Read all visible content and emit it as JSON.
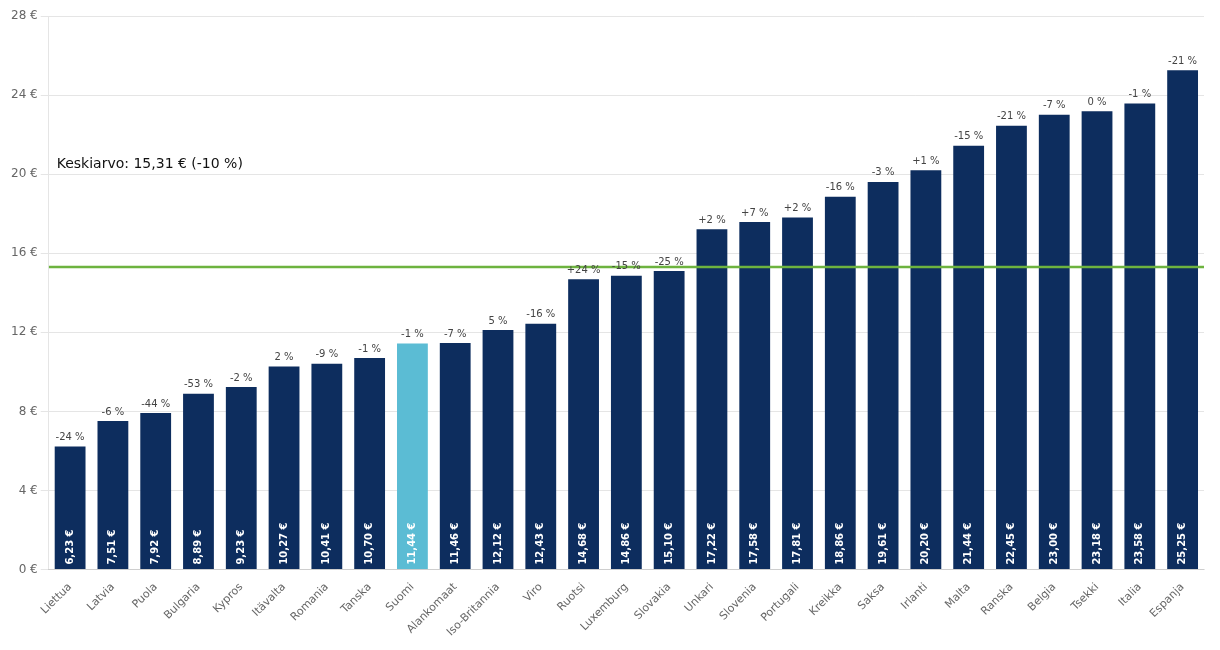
{
  "chart_data": {
    "type": "bar",
    "categories": [
      "Liettua",
      "Latvia",
      "Puola",
      "Bulgaria",
      "Kypros",
      "Itävalta",
      "Romania",
      "Tanska",
      "Suomi",
      "Alankomaat",
      "Iso-Britannia",
      "Viro",
      "Ruotsi",
      "Luxemburg",
      "Slovakia",
      "Unkari",
      "Slovenia",
      "Portugali",
      "Kreikka",
      "Saksa",
      "Irlanti",
      "Malta",
      "Ranska",
      "Belgia",
      "Tsekki",
      "Italia",
      "Espanja"
    ],
    "values": [
      6.23,
      7.51,
      7.92,
      8.89,
      9.23,
      10.27,
      10.41,
      10.7,
      11.44,
      11.46,
      12.12,
      12.43,
      14.68,
      14.86,
      15.1,
      17.22,
      17.58,
      17.81,
      18.86,
      19.61,
      20.2,
      21.44,
      22.45,
      23.0,
      23.18,
      23.58,
      25.25
    ],
    "data_labels": true,
    "value_labels": [
      "6,23 €",
      "7,51 €",
      "7,92 €",
      "8,89 €",
      "9,23 €",
      "10,27 €",
      "10,41 €",
      "10,70 €",
      "11,44 €",
      "11,46 €",
      "12,12 €",
      "12,43 €",
      "14,68 €",
      "14,86 €",
      "15,10 €",
      "17,22 €",
      "17,58 €",
      "17,81 €",
      "18,86 €",
      "19,61 €",
      "20,20 €",
      "21,44 €",
      "22,45 €",
      "23,00 €",
      "23,18 €",
      "23,58 €",
      "25,25 €"
    ],
    "pct_labels": [
      "-24 %",
      "-6 %",
      "-44 %",
      "-53 %",
      "-2 %",
      "2 %",
      "-9 %",
      "-1 %",
      "-1 %",
      "-7 %",
      "5 %",
      "-16 %",
      "+24 %",
      "-15 %",
      "-25 %",
      "+2 %",
      "+7 %",
      "+2 %",
      "-16 %",
      "-3 %",
      "+1 %",
      "-15 %",
      "-21 %",
      "-7 %",
      "0 %",
      "-1 %",
      "-21 %"
    ],
    "colors": [
      "#0d2d5e",
      "#0d2d5e",
      "#0d2d5e",
      "#0d2d5e",
      "#0d2d5e",
      "#0d2d5e",
      "#0d2d5e",
      "#0d2d5e",
      "#5bbcd4",
      "#0d2d5e",
      "#0d2d5e",
      "#0d2d5e",
      "#0d2d5e",
      "#0d2d5e",
      "#0d2d5e",
      "#0d2d5e",
      "#0d2d5e",
      "#0d2d5e",
      "#0d2d5e",
      "#0d2d5e",
      "#0d2d5e",
      "#0d2d5e",
      "#0d2d5e",
      "#0d2d5e",
      "#0d2d5e",
      "#0d2d5e",
      "#0d2d5e"
    ],
    "avg_line": {
      "value": 15.31,
      "label": "Keskiarvo: 15,31 € (-10 %)",
      "color": "#6db33f"
    },
    "ylim": [
      0,
      28
    ],
    "yticks": [
      {
        "value": 0,
        "label": "0 €"
      },
      {
        "value": 4,
        "label": "4 €"
      },
      {
        "value": 8,
        "label": "8 €"
      },
      {
        "value": 12,
        "label": "12 €"
      },
      {
        "value": 16,
        "label": "16 €"
      },
      {
        "value": 20,
        "label": "20 €"
      },
      {
        "value": 24,
        "label": "24 €"
      },
      {
        "value": 28,
        "label": "28 €"
      }
    ],
    "grid": true
  }
}
